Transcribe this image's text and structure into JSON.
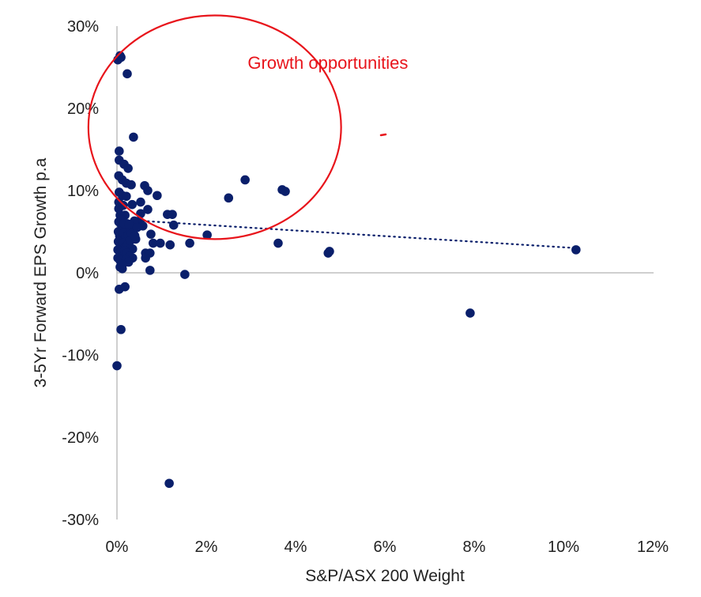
{
  "chart_data": {
    "type": "scatter",
    "title": "",
    "xlabel": "S&P/ASX 200 Weight",
    "ylabel": "3-5Yr Forward EPS Growth p.a",
    "xlim": [
      0,
      12
    ],
    "ylim": [
      -30,
      30
    ],
    "x_ticks": [
      "0%",
      "2%",
      "4%",
      "6%",
      "8%",
      "10%",
      "12%"
    ],
    "y_ticks": [
      "30%",
      "20%",
      "10%",
      "0%",
      "-10%",
      "-20%",
      "-30%"
    ],
    "grid": false,
    "legend": "none",
    "colors": {
      "points": "#0a1f6b",
      "trendline": "#0a1f6b",
      "annotation": "#e8141b",
      "axis": "#bfbfbf"
    },
    "points": [
      [
        0.07,
        26.4
      ],
      [
        0.02,
        25.9
      ],
      [
        0.09,
        26.2
      ],
      [
        0.23,
        24.2
      ],
      [
        0.37,
        16.5
      ],
      [
        0.05,
        14.8
      ],
      [
        0.05,
        13.7
      ],
      [
        0.16,
        13.2
      ],
      [
        0.25,
        12.7
      ],
      [
        0.04,
        11.8
      ],
      [
        0.12,
        11.3
      ],
      [
        0.21,
        10.9
      ],
      [
        0.32,
        10.7
      ],
      [
        0.62,
        10.6
      ],
      [
        0.69,
        10.0
      ],
      [
        0.9,
        9.4
      ],
      [
        0.05,
        9.8
      ],
      [
        0.12,
        9.4
      ],
      [
        0.21,
        9.3
      ],
      [
        0.34,
        8.3
      ],
      [
        0.04,
        8.6
      ],
      [
        0.04,
        7.8
      ],
      [
        0.14,
        8.2
      ],
      [
        0.53,
        8.6
      ],
      [
        0.69,
        7.7
      ],
      [
        0.07,
        7.0
      ],
      [
        0.18,
        7.0
      ],
      [
        0.53,
        7.2
      ],
      [
        1.13,
        7.1
      ],
      [
        1.24,
        7.1
      ],
      [
        0.5,
        6.3
      ],
      [
        0.39,
        6.3
      ],
      [
        1.27,
        5.8
      ],
      [
        0.58,
        5.7
      ],
      [
        0.1,
        5.8
      ],
      [
        0.21,
        5.1
      ],
      [
        0.76,
        4.7
      ],
      [
        2.02,
        4.6
      ],
      [
        0.42,
        4.1
      ],
      [
        0.81,
        3.6
      ],
      [
        0.97,
        3.6
      ],
      [
        1.19,
        3.4
      ],
      [
        1.63,
        3.6
      ],
      [
        0.35,
        2.9
      ],
      [
        0.64,
        2.4
      ],
      [
        0.74,
        2.4
      ],
      [
        0.64,
        1.8
      ],
      [
        0.35,
        1.8
      ],
      [
        0.74,
        0.3
      ],
      [
        1.52,
        -0.2
      ],
      [
        0.07,
        0.7
      ],
      [
        0.12,
        0.5
      ],
      [
        0.05,
        -2.0
      ],
      [
        0.18,
        -1.7
      ],
      [
        0.09,
        -6.9
      ],
      [
        0.0,
        -11.3
      ],
      [
        1.17,
        -25.6
      ],
      [
        2.5,
        9.1
      ],
      [
        2.87,
        11.3
      ],
      [
        3.7,
        10.1
      ],
      [
        3.77,
        9.9
      ],
      [
        3.61,
        3.6
      ],
      [
        4.73,
        2.4
      ],
      [
        4.76,
        2.6
      ],
      [
        7.91,
        -4.9
      ],
      [
        10.28,
        2.8
      ],
      [
        0.03,
        5.0
      ],
      [
        0.06,
        4.5
      ],
      [
        0.1,
        4.2
      ],
      [
        0.15,
        4.8
      ],
      [
        0.2,
        4.4
      ],
      [
        0.25,
        4.6
      ],
      [
        0.3,
        5.2
      ],
      [
        0.03,
        3.8
      ],
      [
        0.08,
        3.3
      ],
      [
        0.13,
        3.6
      ],
      [
        0.18,
        3.1
      ],
      [
        0.24,
        3.4
      ],
      [
        0.3,
        3.9
      ],
      [
        0.02,
        2.8
      ],
      [
        0.07,
        2.5
      ],
      [
        0.12,
        2.2
      ],
      [
        0.17,
        2.7
      ],
      [
        0.22,
        2.4
      ],
      [
        0.28,
        2.0
      ],
      [
        0.02,
        1.8
      ],
      [
        0.07,
        1.5
      ],
      [
        0.14,
        1.2
      ],
      [
        0.2,
        1.6
      ],
      [
        0.26,
        1.3
      ],
      [
        0.04,
        6.2
      ],
      [
        0.09,
        6.5
      ],
      [
        0.16,
        6.0
      ],
      [
        0.27,
        5.9
      ],
      [
        0.33,
        4.8
      ],
      [
        0.4,
        4.5
      ],
      [
        0.45,
        5.5
      ],
      [
        0.12,
        1.0
      ]
    ],
    "trendline": {
      "type": "linear",
      "style": "dotted",
      "x": [
        0,
        10.3
      ],
      "y": [
        6.5,
        3.0
      ]
    },
    "annotations": [
      {
        "type": "ellipse",
        "cx": 2.19,
        "cy": 17.7,
        "rx": 2.83,
        "ry": 13.6
      },
      {
        "type": "text",
        "text": "Growth opportunities",
        "x": 4.9,
        "y": 25.0
      }
    ]
  }
}
